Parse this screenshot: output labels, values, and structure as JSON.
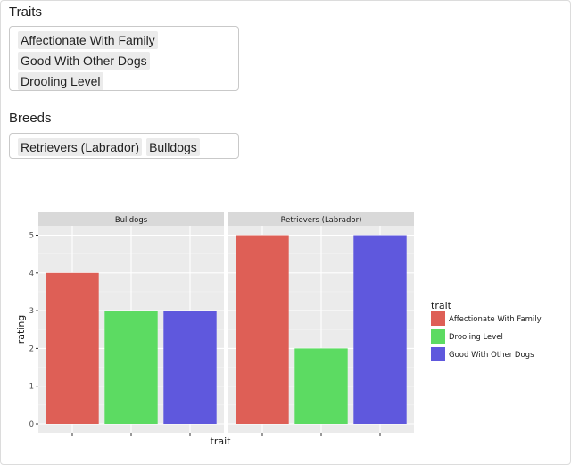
{
  "traits": {
    "label": "Traits",
    "selected": [
      "Affectionate With Family",
      "Good With Other Dogs",
      "Drooling Level"
    ]
  },
  "breeds": {
    "label": "Breeds",
    "selected": [
      "Retrievers (Labrador)",
      "Bulldogs"
    ]
  },
  "chart_data": {
    "type": "bar",
    "xlabel": "trait",
    "ylabel": "rating",
    "ylim": [
      0,
      5
    ],
    "yticks": [
      0,
      1,
      2,
      3,
      4,
      5
    ],
    "grid": true,
    "legend_position": "right",
    "legend_title": "trait",
    "legend": [
      {
        "name": "Affectionate With Family",
        "color": "#de5f56"
      },
      {
        "name": "Drooling Level",
        "color": "#5cdb62"
      },
      {
        "name": "Good With Other Dogs",
        "color": "#5f58dd"
      }
    ],
    "categories": [
      "Affectionate With Family",
      "Drooling Level",
      "Good With Other Dogs"
    ],
    "panels": [
      {
        "title": "Bulldogs",
        "values": [
          4,
          3,
          3
        ]
      },
      {
        "title": "Retrievers (Labrador)",
        "values": [
          5,
          2,
          5
        ]
      }
    ]
  }
}
